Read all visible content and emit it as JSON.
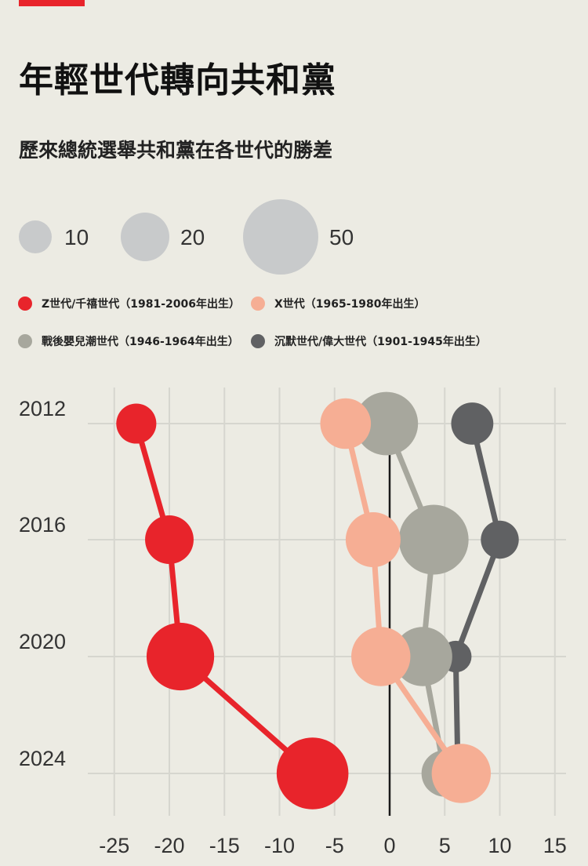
{
  "header": {
    "title": "年輕世代轉向共和黨",
    "subtitle": "歷來總統選舉共和黨在各世代的勝差"
  },
  "colors": {
    "accent": "#e8242b",
    "background": "#ecebe3"
  },
  "chart_data": {
    "type": "scatter",
    "title": "年輕世代轉向共和黨",
    "subtitle": "歷來總統選舉共和黨在各世代的勝差",
    "xlabel": "",
    "ylabel": "",
    "xlim": [
      -27,
      16
    ],
    "x_ticks": [
      -25,
      -20,
      -15,
      -10,
      -5,
      0,
      5,
      10,
      15
    ],
    "categories": [
      "2012",
      "2016",
      "2020",
      "2024"
    ],
    "grid": true,
    "size_legend": [
      {
        "label": "10",
        "value": 10
      },
      {
        "label": "20",
        "value": 20
      },
      {
        "label": "50",
        "value": 50
      }
    ],
    "legend_position": "top",
    "series": [
      {
        "name": "沉默世代/偉大世代（1901-1945年出生）",
        "color": "#606163",
        "x": [
          7.5,
          10,
          6,
          6.2
        ],
        "size": [
          14,
          12,
          9,
          3
        ]
      },
      {
        "name": "戰後嬰兒潮世代（1946-1964年出生）",
        "color": "#a7a79d",
        "x": [
          -0.3,
          4,
          3,
          5
        ],
        "size": [
          24,
          27,
          22,
          16
        ]
      },
      {
        "name": "X世代（1965-1980年出生）",
        "color": "#f6ae94",
        "x": [
          -4,
          -1.5,
          -0.8,
          6.5
        ],
        "size": [
          18,
          20,
          22,
          22
        ]
      },
      {
        "name": "Z世代/千禧世代（1981-2006年出生）",
        "color": "#e8242b",
        "x": [
          -23,
          -20,
          -19,
          -7
        ],
        "size": [
          13,
          17,
          26,
          28
        ]
      }
    ]
  }
}
